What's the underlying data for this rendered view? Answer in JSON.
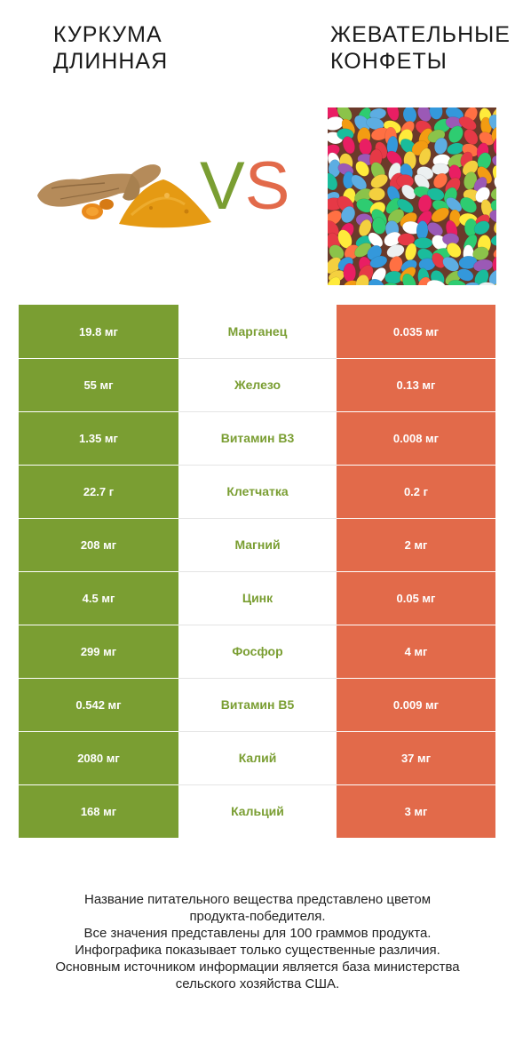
{
  "left_product": {
    "title_line1": "КУРКУМА",
    "title_line2": "ДЛИННАЯ",
    "color": "#7a9e32",
    "image": "turmeric-root-and-powder"
  },
  "right_product": {
    "title_line1": "ЖЕВАТЕЛЬНЫЕ",
    "title_line2": "КОНФЕТЫ",
    "color": "#e26a4a",
    "image": "jelly-beans"
  },
  "vs": {
    "v": "V",
    "s": "S"
  },
  "rows": [
    {
      "left": "19.8 мг",
      "nutrient": "Марганец",
      "right": "0.035 мг"
    },
    {
      "left": "55 мг",
      "nutrient": "Железо",
      "right": "0.13 мг"
    },
    {
      "left": "1.35 мг",
      "nutrient": "Витамин B3",
      "right": "0.008 мг"
    },
    {
      "left": "22.7 г",
      "nutrient": "Клетчатка",
      "right": "0.2 г"
    },
    {
      "left": "208 мг",
      "nutrient": "Магний",
      "right": "2 мг"
    },
    {
      "left": "4.5 мг",
      "nutrient": "Цинк",
      "right": "0.05 мг"
    },
    {
      "left": "299 мг",
      "nutrient": "Фосфор",
      "right": "4 мг"
    },
    {
      "left": "0.542 мг",
      "nutrient": "Витамин B5",
      "right": "0.009 мг"
    },
    {
      "left": "2080 мг",
      "nutrient": "Калий",
      "right": "37 мг"
    },
    {
      "left": "168 мг",
      "nutrient": "Кальций",
      "right": "3 мг"
    }
  ],
  "footer": {
    "line1": "Название питательного вещества представлено цветом",
    "line2": "продукта-победителя.",
    "line3": "Все значения представлены для 100 граммов продукта.",
    "line4": "Инфографика показывает только существенные различия.",
    "line5": "Основным источником информации является база министерства",
    "line6": "сельского хозяйства США."
  }
}
